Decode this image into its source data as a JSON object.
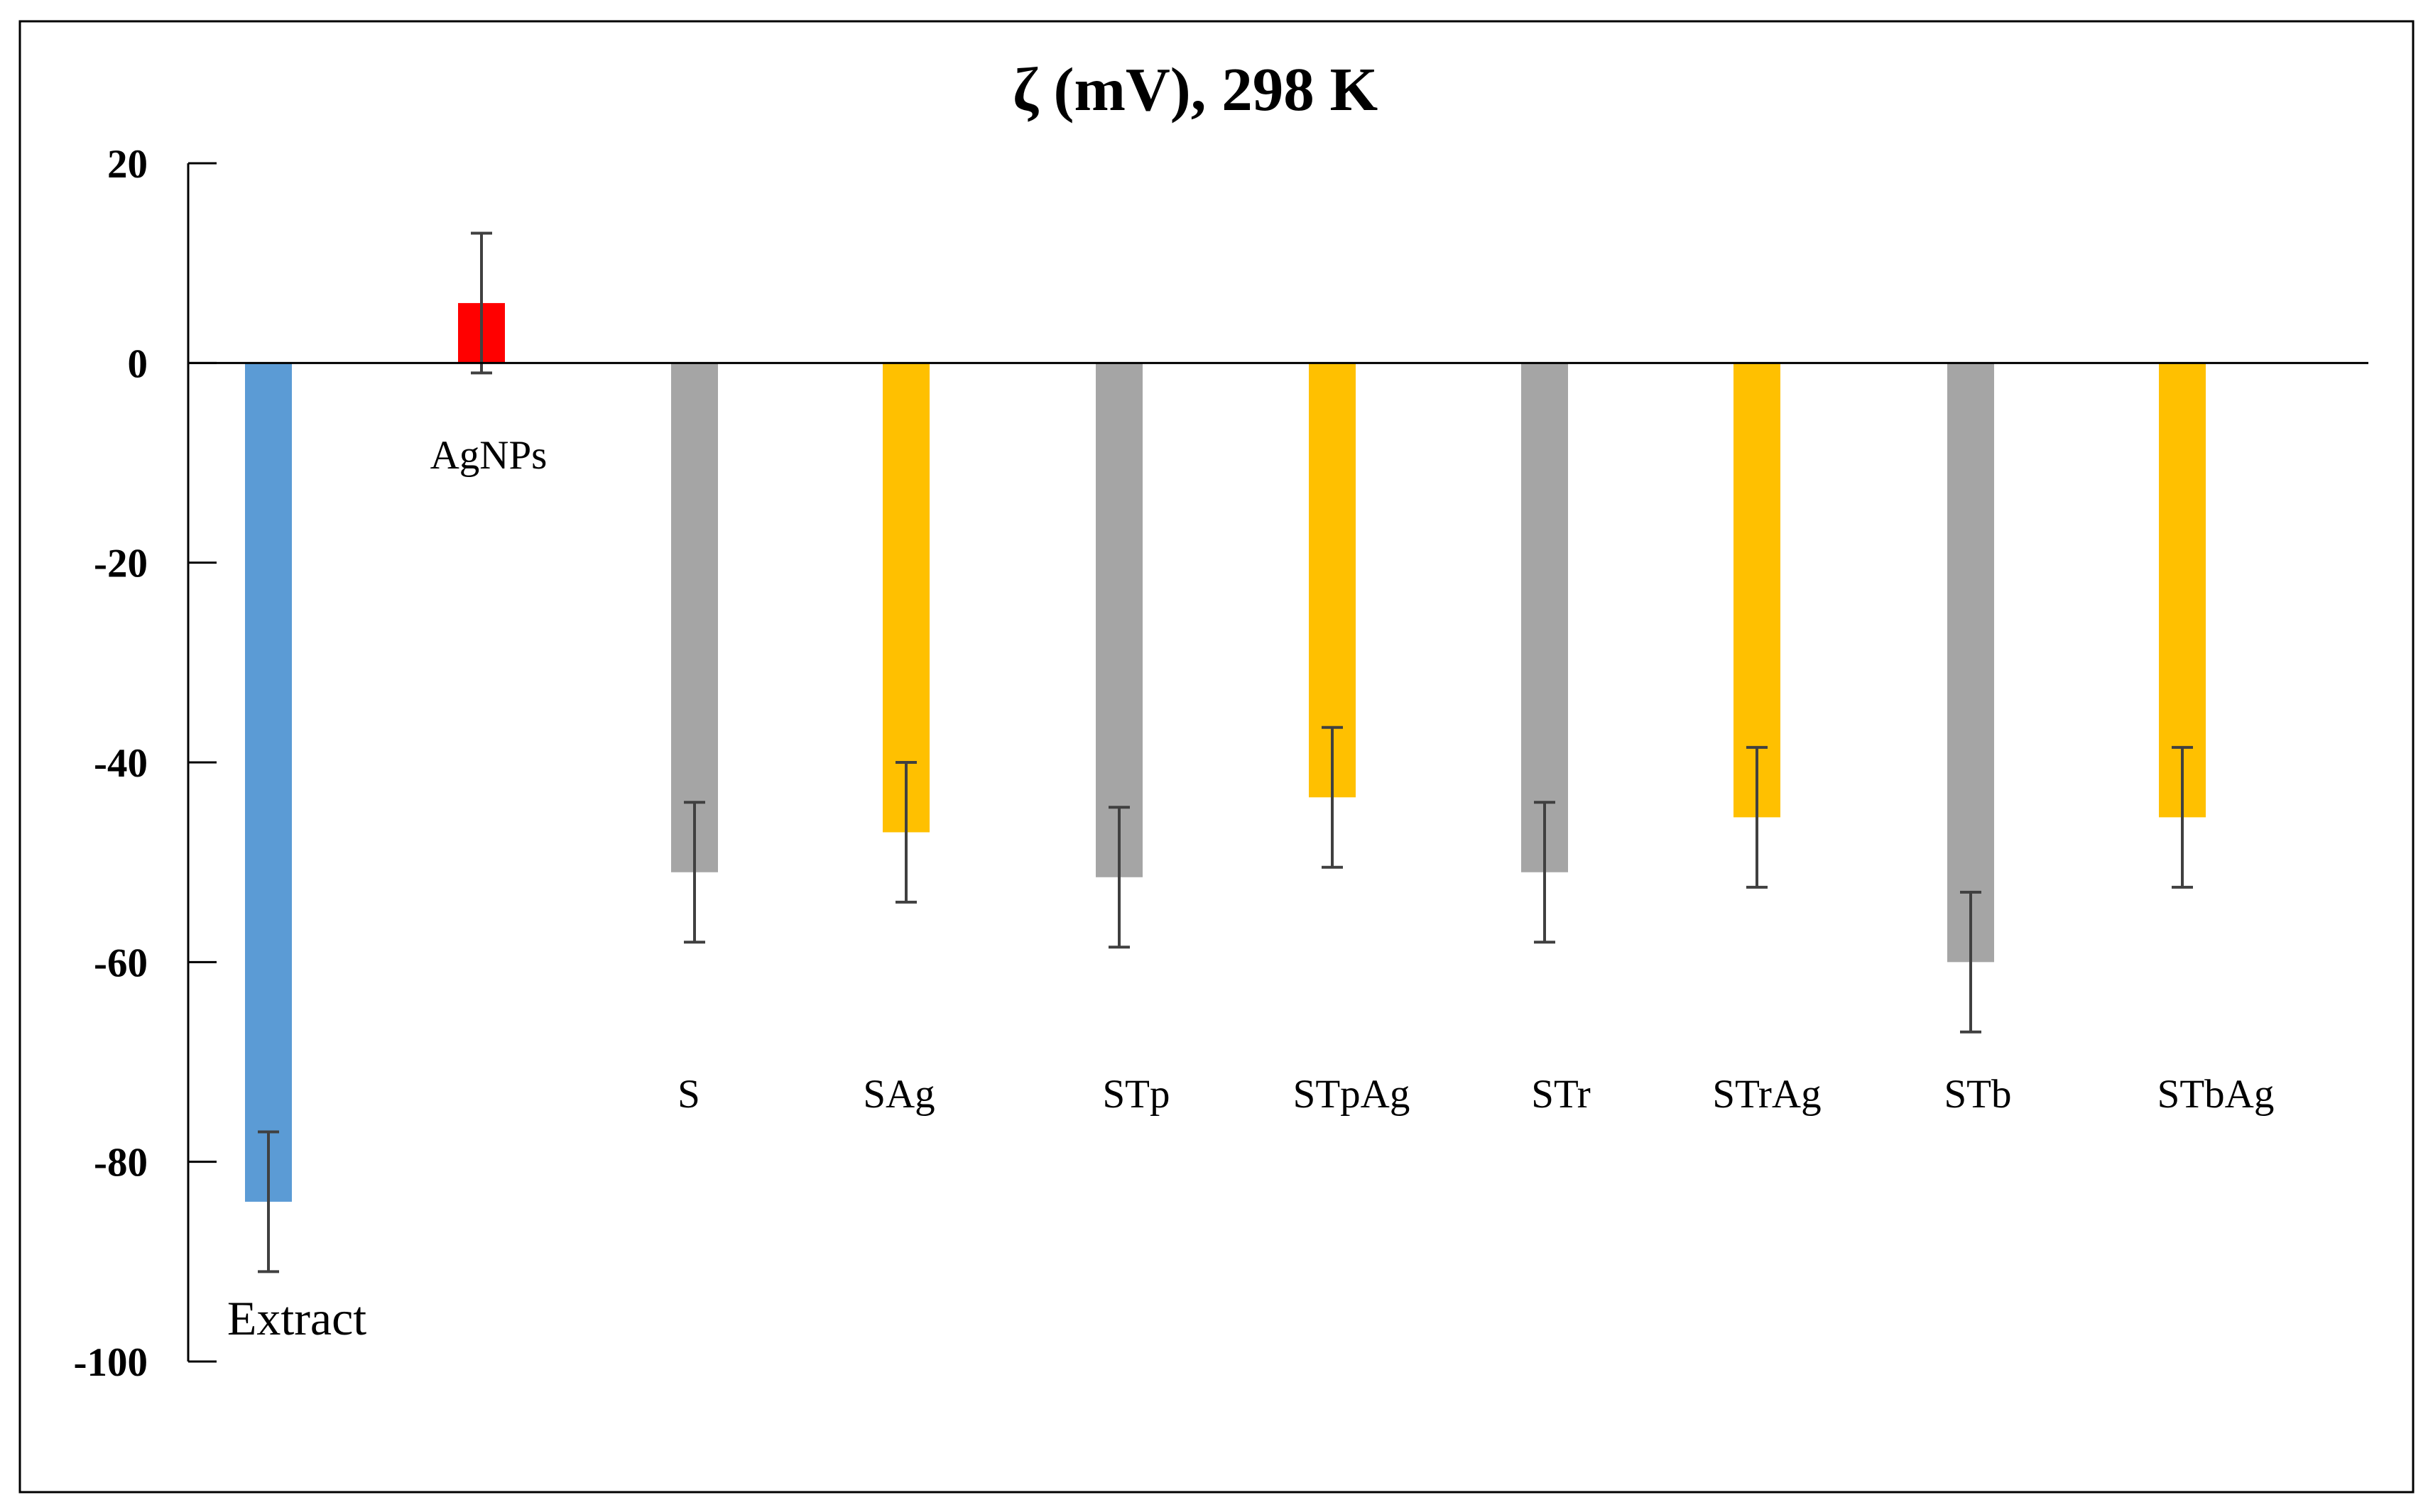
{
  "chart_data": {
    "type": "bar",
    "title": "ζ (mV), 298 K",
    "xlabel": "",
    "ylabel": "",
    "ylim": [
      -100,
      20
    ],
    "yticks": [
      20,
      0,
      -20,
      -40,
      -60,
      -80,
      -100
    ],
    "grid": false,
    "legend": "none",
    "categories": [
      "Extract",
      "AgNPs",
      "S",
      "SAg",
      "STp",
      "STpAg",
      "STr",
      "STrAg",
      "STb",
      "STbAg"
    ],
    "values": [
      -84,
      6,
      -51,
      -47,
      -51.5,
      -43.5,
      -51,
      -45.5,
      -60,
      -45.5
    ],
    "errors": [
      7,
      7,
      7,
      7,
      7,
      7,
      7,
      7,
      7,
      7
    ],
    "colors": [
      "#5b9bd5",
      "#ff0000",
      "#a5a5a5",
      "#ffc000",
      "#a5a5a5",
      "#ffc000",
      "#a5a5a5",
      "#ffc000",
      "#a5a5a5",
      "#ffc000"
    ],
    "error_bar_color": "#404040"
  }
}
